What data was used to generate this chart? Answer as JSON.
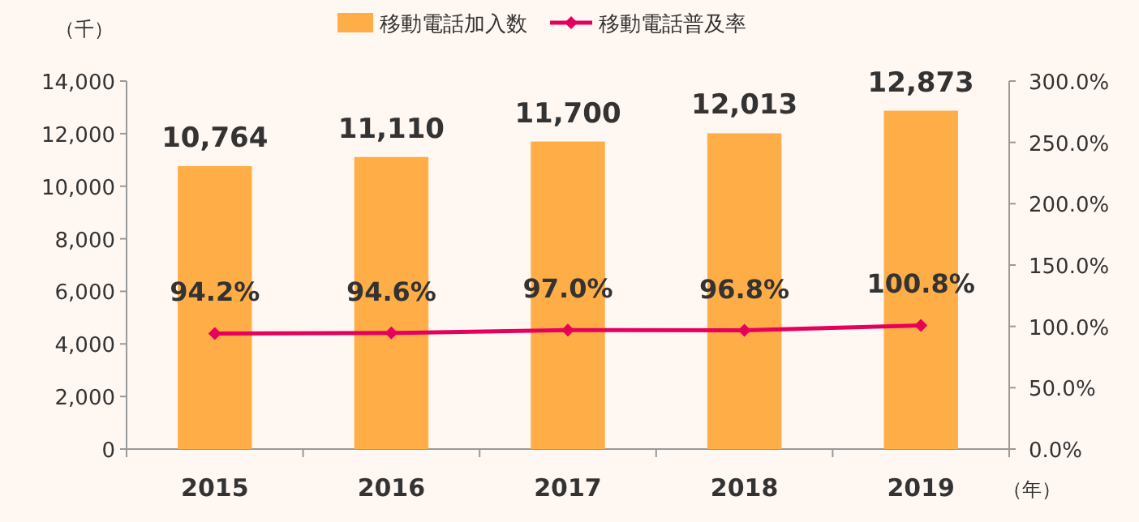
{
  "chart_data": {
    "type": "bar",
    "ylabel": "（千）",
    "xlabel": "（年）",
    "categories": [
      "2015",
      "2016",
      "2017",
      "2018",
      "2019"
    ],
    "series": [
      {
        "name": "移動電話加入数",
        "color": "#ffad47",
        "values": [
          10764,
          11110,
          11700,
          12013,
          12873
        ],
        "value_labels": [
          "10,764",
          "11,110",
          "11,700",
          "12,013",
          "12,873"
        ]
      },
      {
        "name": "移動電話普及率",
        "type": "line",
        "axis": "y2",
        "color": "#e6005c",
        "marker": "diamond",
        "values": [
          94.2,
          94.6,
          97.0,
          96.8,
          100.8
        ],
        "value_labels": [
          "94.2%",
          "94.6%",
          "97.0%",
          "96.8%",
          "100.8%"
        ]
      }
    ],
    "ylim": [
      0,
      14000
    ],
    "yticks": [
      0,
      {
        "value": 2000,
        "label": "2,000"
      },
      {
        "value": 4000,
        "label": "4,000"
      },
      {
        "value": 6000,
        "label": "6,000"
      },
      {
        "value": 8000,
        "label": "8,000"
      },
      {
        "value": 10000,
        "label": "10,000"
      },
      {
        "value": 12000,
        "label": "12,000"
      },
      {
        "value": 14000,
        "label": "14,000"
      }
    ],
    "y2lim": [
      0,
      300
    ],
    "y2ticks": [
      {
        "value": 0,
        "label": "0.0%"
      },
      {
        "value": 50,
        "label": "50.0%"
      },
      {
        "value": 100,
        "label": "100.0%"
      },
      {
        "value": 150,
        "label": "150.0%"
      },
      {
        "value": 200,
        "label": "200.0%"
      },
      {
        "value": 250,
        "label": "250.0%"
      },
      {
        "value": 300,
        "label": "300.0%"
      }
    ],
    "grid": false,
    "legend": "top"
  }
}
